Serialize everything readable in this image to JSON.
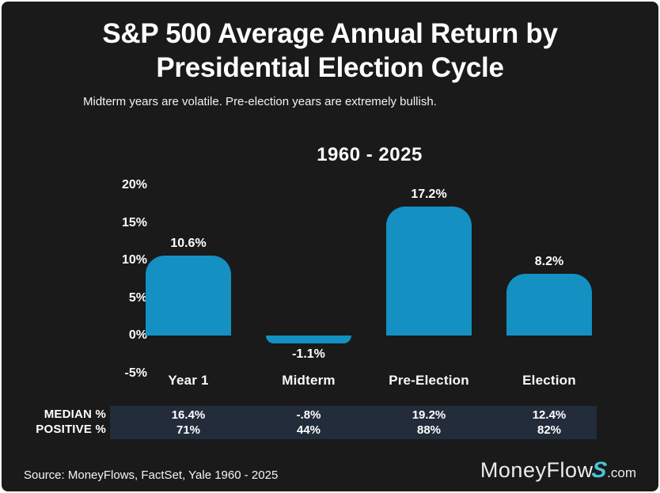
{
  "header": {
    "title_line1": "S&P 500 Average Annual Return by",
    "title_line2": "Presidential Election Cycle",
    "subtitle": "Midterm years are volatile. Pre-election years are extremely bullish."
  },
  "chart_data": {
    "type": "bar",
    "title": "1960 - 2025",
    "categories": [
      "Year 1",
      "Midterm",
      "Pre-Election",
      "Election"
    ],
    "values": [
      10.6,
      -1.1,
      17.2,
      8.2
    ],
    "value_labels": [
      "10.6%",
      "-1.1%",
      "17.2%",
      "8.2%"
    ],
    "y_ticks": [
      "20%",
      "15%",
      "10%",
      "5%",
      "0%",
      "-5%"
    ],
    "y_tick_values": [
      20,
      15,
      10,
      5,
      0,
      -5
    ],
    "ylim": [
      -5,
      20
    ],
    "grid": false,
    "legend": false,
    "bar_color": "#1490C2",
    "xlabel": "",
    "ylabel": ""
  },
  "stats_table": {
    "band_color": "#222c3b",
    "rows": [
      {
        "label": "MEDIAN %",
        "values": [
          "16.4%",
          "-.8%",
          "19.2%",
          "12.4%"
        ]
      },
      {
        "label": "POSITIVE %",
        "values": [
          "71%",
          "44%",
          "88%",
          "82%"
        ]
      }
    ]
  },
  "footer": {
    "source": "Source: MoneyFlows, FactSet, Yale 1960 - 2025",
    "logo": {
      "part1": "MoneyFlow",
      "part2": "S",
      "part3": ".com"
    }
  }
}
